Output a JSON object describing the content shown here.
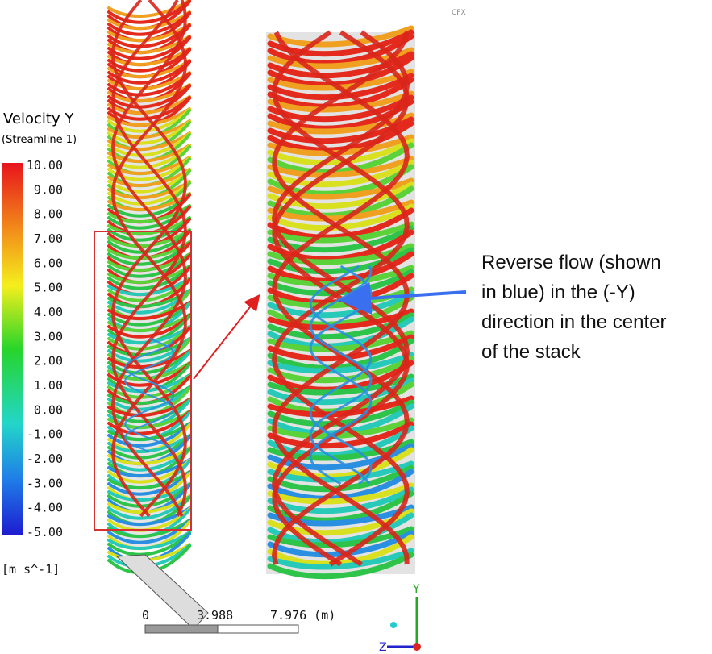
{
  "legend": {
    "title": "Velocity Y",
    "subtitle": "(Streamline 1)",
    "labels": [
      "10.00",
      "9.00",
      "8.00",
      "7.00",
      "6.00",
      "5.00",
      "4.00",
      "3.00",
      "2.00",
      "1.00",
      "0.00",
      "-1.00",
      "-2.00",
      "-3.00",
      "-4.00",
      "-5.00"
    ],
    "units": "[m s^-1]"
  },
  "scale": {
    "labels": [
      "0",
      "3.988",
      "7.976 (m)"
    ]
  },
  "axes": {
    "y": "Y",
    "z": "Z"
  },
  "logo": "CFX",
  "annotation": {
    "lines": [
      "Reverse flow (shown",
      "in blue) in the (-Y)",
      "direction in the center",
      "of the stack"
    ]
  }
}
